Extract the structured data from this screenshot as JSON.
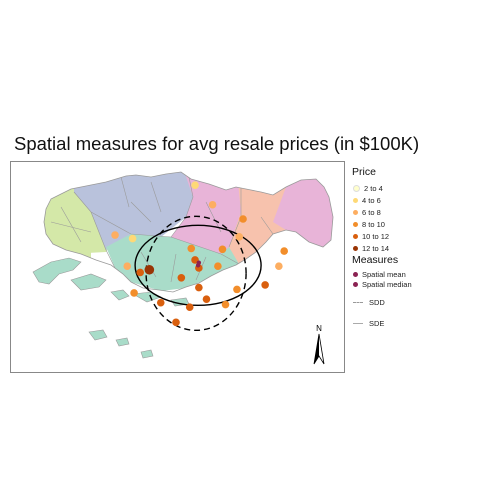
{
  "map": {
    "title": "Spatial measures for avg resale prices (in $100K)",
    "north_label": "N",
    "legend": {
      "price_title": "Price",
      "price_classes": [
        {
          "label": "2 to 4",
          "color": "#ffffcc"
        },
        {
          "label": "4 to 6",
          "color": "#fed976"
        },
        {
          "label": "6 to 8",
          "color": "#fdae61"
        },
        {
          "label": "8 to 10",
          "color": "#f28e2b"
        },
        {
          "label": "10 to 12",
          "color": "#d95f0e"
        },
        {
          "label": "12 to 14",
          "color": "#993404"
        }
      ],
      "measures_title": "Measures",
      "measures": [
        {
          "label": "Spatial mean",
          "color": "#8b2252"
        },
        {
          "label": "Spatial median",
          "color": "#8b2252"
        }
      ],
      "sdd_label": "SDD",
      "sde_label": "SDE"
    },
    "region_colors": {
      "west": "#d4e8a8",
      "north": "#b9c2dc",
      "north_east": "#e8b4d8",
      "east": "#f7c2ad",
      "central": "#a9dcc9",
      "islands": "#a9dcc9",
      "boundary": "#9a9a9a"
    },
    "price_points": [
      {
        "lon": 103.845,
        "lat": 1.443,
        "class": 2
      },
      {
        "lon": 103.868,
        "lat": 1.421,
        "class": 3
      },
      {
        "lon": 103.908,
        "lat": 1.405,
        "class": 4
      },
      {
        "lon": 103.74,
        "lat": 1.387,
        "class": 3
      },
      {
        "lon": 103.763,
        "lat": 1.383,
        "class": 2
      },
      {
        "lon": 103.903,
        "lat": 1.385,
        "class": 3
      },
      {
        "lon": 103.84,
        "lat": 1.372,
        "class": 4
      },
      {
        "lon": 103.881,
        "lat": 1.371,
        "class": 4
      },
      {
        "lon": 103.962,
        "lat": 1.369,
        "class": 4
      },
      {
        "lon": 103.756,
        "lat": 1.352,
        "class": 3
      },
      {
        "lon": 103.773,
        "lat": 1.345,
        "class": 5
      },
      {
        "lon": 103.85,
        "lat": 1.35,
        "class": 5
      },
      {
        "lon": 103.875,
        "lat": 1.352,
        "class": 4
      },
      {
        "lon": 103.845,
        "lat": 1.359,
        "class": 5
      },
      {
        "lon": 103.955,
        "lat": 1.352,
        "class": 3
      },
      {
        "lon": 103.827,
        "lat": 1.339,
        "class": 5
      },
      {
        "lon": 103.85,
        "lat": 1.328,
        "class": 5
      },
      {
        "lon": 103.937,
        "lat": 1.331,
        "class": 5
      },
      {
        "lon": 103.9,
        "lat": 1.326,
        "class": 4
      },
      {
        "lon": 103.765,
        "lat": 1.322,
        "class": 4
      },
      {
        "lon": 103.86,
        "lat": 1.315,
        "class": 5
      },
      {
        "lon": 103.885,
        "lat": 1.309,
        "class": 4
      },
      {
        "lon": 103.8,
        "lat": 1.311,
        "class": 5
      },
      {
        "lon": 103.838,
        "lat": 1.306,
        "class": 5
      },
      {
        "lon": 103.82,
        "lat": 1.289,
        "class": 5
      },
      {
        "lon": 103.785,
        "lat": 1.348,
        "class": 6
      }
    ],
    "spatial_mean": {
      "lon": 103.849,
      "lat": 1.353
    },
    "spatial_median": {
      "lon": 103.85,
      "lat": 1.356
    }
  }
}
